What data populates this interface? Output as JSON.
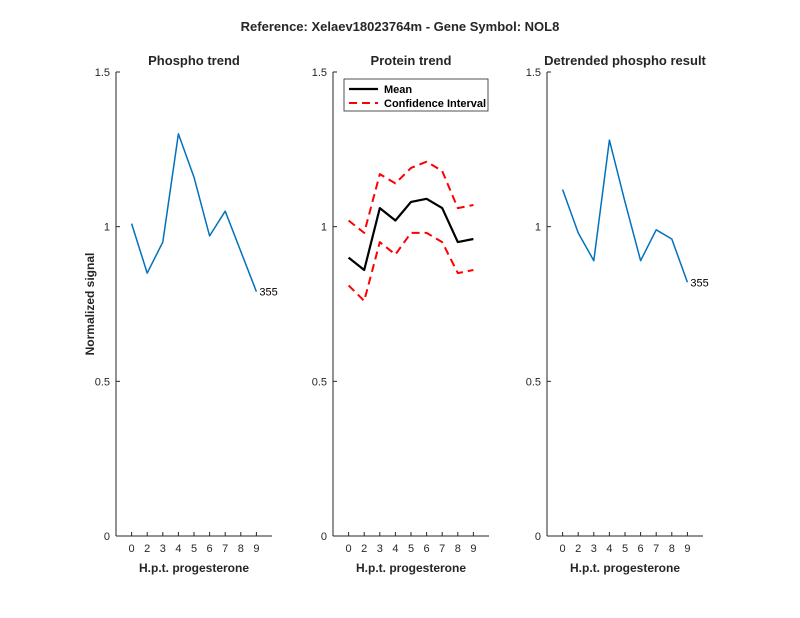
{
  "figure": {
    "suptitle": "Reference:  Xelaev18023764m - Gene Symbol:  NOL8"
  },
  "colors": {
    "phospho": "#0072BD",
    "mean": "#000000",
    "ci": "#FF0000",
    "axis": "#262626"
  },
  "chart_data": [
    {
      "id": "phospho",
      "type": "line",
      "title": "Phospho trend",
      "xlabel": "H.p.t. progesterone",
      "ylabel": "Normalized signal",
      "categories": [
        "0",
        "2",
        "3",
        "4",
        "5",
        "6",
        "7",
        "8",
        "9"
      ],
      "ylim": [
        0,
        1.5
      ],
      "yticks": [
        "0",
        "0.5",
        "1",
        "1.5"
      ],
      "series": [
        {
          "values": [
            1.01,
            0.85,
            0.95,
            1.3,
            1.16,
            0.97,
            1.05,
            0.92,
            0.79
          ],
          "style": "solid",
          "colorKey": "phospho"
        }
      ],
      "end_label": "355"
    },
    {
      "id": "protein",
      "type": "line",
      "title": "Protein trend",
      "xlabel": "H.p.t. progesterone",
      "ylabel": "",
      "categories": [
        "0",
        "2",
        "3",
        "4",
        "5",
        "6",
        "7",
        "8",
        "9"
      ],
      "ylim": [
        0,
        1.5
      ],
      "yticks": [
        "0",
        "0.5",
        "1",
        "1.5"
      ],
      "legend": {
        "placement": "top-left",
        "entries": [
          "Mean",
          "Confidence Interval"
        ]
      },
      "series": [
        {
          "name": "Mean",
          "values": [
            0.9,
            0.86,
            1.06,
            1.02,
            1.08,
            1.09,
            1.06,
            0.95,
            0.96
          ],
          "style": "solid",
          "colorKey": "mean"
        },
        {
          "name": "Confidence Interval",
          "values": [
            1.02,
            0.98,
            1.17,
            1.14,
            1.19,
            1.21,
            1.18,
            1.06,
            1.07
          ],
          "style": "dashed",
          "colorKey": "ci"
        },
        {
          "name": "Confidence Interval",
          "values": [
            0.81,
            0.76,
            0.95,
            0.91,
            0.98,
            0.98,
            0.95,
            0.85,
            0.86
          ],
          "style": "dashed",
          "colorKey": "ci"
        }
      ]
    },
    {
      "id": "detrended",
      "type": "line",
      "title": "Detrended phospho result",
      "xlabel": "H.p.t. progesterone",
      "ylabel": "",
      "categories": [
        "0",
        "2",
        "3",
        "4",
        "5",
        "6",
        "7",
        "8",
        "9"
      ],
      "ylim": [
        0,
        1.5
      ],
      "yticks": [
        "0",
        "0.5",
        "1",
        "1.5"
      ],
      "series": [
        {
          "values": [
            1.12,
            0.98,
            0.89,
            1.28,
            1.08,
            0.89,
            0.99,
            0.96,
            0.82
          ],
          "style": "solid",
          "colorKey": "phospho"
        }
      ],
      "end_label": "355"
    }
  ]
}
